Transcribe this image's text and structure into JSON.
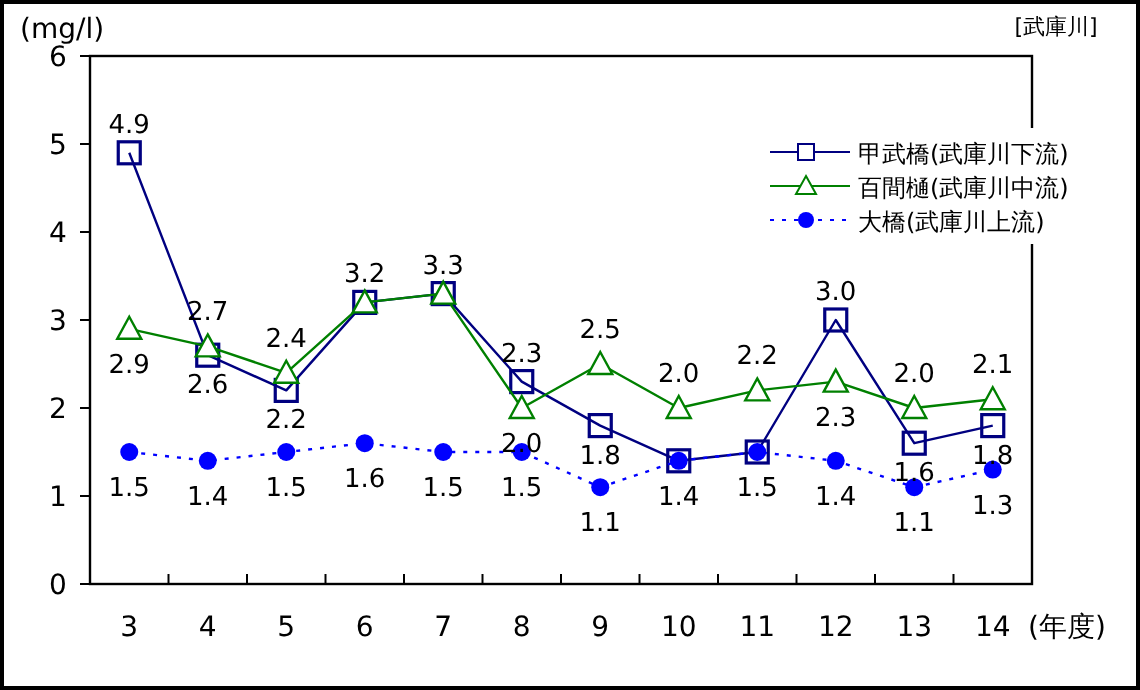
{
  "chart_data": {
    "type": "line",
    "subtitle": "[武庫川]",
    "xlabel": "(年度)",
    "ylabel": "(mg/l)",
    "categories": [
      "3",
      "4",
      "5",
      "6",
      "7",
      "8",
      "9",
      "10",
      "11",
      "12",
      "13",
      "14"
    ],
    "ylim": [
      0,
      6
    ],
    "yticks": [
      0,
      1,
      2,
      3,
      4,
      5,
      6
    ],
    "legend": "top right",
    "series": [
      {
        "name": "甲武橋(武庫川下流)",
        "color": "#000080",
        "marker": "square",
        "line_style": "solid",
        "values": [
          4.9,
          2.6,
          2.2,
          3.2,
          3.3,
          2.3,
          1.8,
          1.4,
          1.5,
          3.0,
          1.6,
          1.8
        ],
        "value_labels": [
          "4.9",
          "2.6",
          "2.2",
          "3.2",
          "3.3",
          "2.3",
          "1.8",
          null,
          null,
          "3.0",
          "1.6",
          "1.8"
        ]
      },
      {
        "name": "百間樋(武庫川中流)",
        "color": "#008000",
        "marker": "triangle",
        "line_style": "solid",
        "values": [
          2.9,
          2.7,
          2.4,
          3.2,
          3.3,
          2.0,
          2.5,
          2.0,
          2.2,
          2.3,
          2.0,
          2.1
        ],
        "value_labels": [
          "2.9",
          "2.7",
          "2.4",
          null,
          null,
          "2.0",
          "2.5",
          "2.0",
          "2.2",
          "2.3",
          "2.0",
          "2.1"
        ]
      },
      {
        "name": "大橋(武庫川上流)",
        "color": "#0000ff",
        "marker": "circle",
        "line_style": "dotted",
        "values": [
          1.5,
          1.4,
          1.5,
          1.6,
          1.5,
          1.5,
          1.1,
          1.4,
          1.5,
          1.4,
          1.1,
          1.3
        ],
        "value_labels": [
          "1.5",
          "1.4",
          "1.5",
          "1.6",
          "1.5",
          "1.5",
          "1.1",
          "1.4",
          "1.5",
          "1.4",
          "1.1",
          "1.3"
        ]
      }
    ]
  }
}
